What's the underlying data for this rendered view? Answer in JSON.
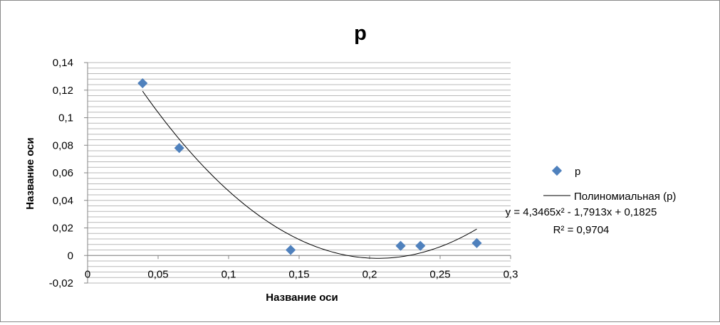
{
  "chart_data": {
    "type": "scatter",
    "title": "p",
    "xlabel": "Название оси",
    "ylabel": "Название оси",
    "xlim": [
      0,
      0.3
    ],
    "ylim": [
      -0.02,
      0.14
    ],
    "x_ticks": [
      0,
      0.05,
      0.1,
      0.15,
      0.2,
      0.25,
      0.3
    ],
    "x_tick_labels": [
      "0",
      "0,05",
      "0,1",
      "0,15",
      "0,2",
      "0,25",
      "0,3"
    ],
    "y_ticks": [
      -0.02,
      0,
      0.02,
      0.04,
      0.06,
      0.08,
      0.1,
      0.12,
      0.14
    ],
    "y_tick_labels": [
      "-0,02",
      "0",
      "0,02",
      "0,04",
      "0,06",
      "0,08",
      "0,1",
      "0,12",
      "0,14"
    ],
    "horizontal_grid_step": 0.004,
    "grid": true,
    "legend_position": "right",
    "series": [
      {
        "name": "p",
        "marker": "diamond",
        "color": "#4f81bd",
        "points": [
          {
            "x": 0.039,
            "y": 0.125
          },
          {
            "x": 0.065,
            "y": 0.078
          },
          {
            "x": 0.144,
            "y": 0.004
          },
          {
            "x": 0.222,
            "y": 0.007
          },
          {
            "x": 0.236,
            "y": 0.007
          },
          {
            "x": 0.276,
            "y": 0.009
          }
        ]
      }
    ],
    "trendline": {
      "name": "Полиномиальная (p)",
      "type": "polynomial",
      "coefficients": [
        4.3465,
        -1.7913,
        0.1825
      ],
      "x_range": [
        0.039,
        0.276
      ],
      "equation": "y = 4,3465x² - 1,7913x + 0,1825",
      "r_squared": "R² = 0,9704",
      "color": "#000000"
    }
  }
}
